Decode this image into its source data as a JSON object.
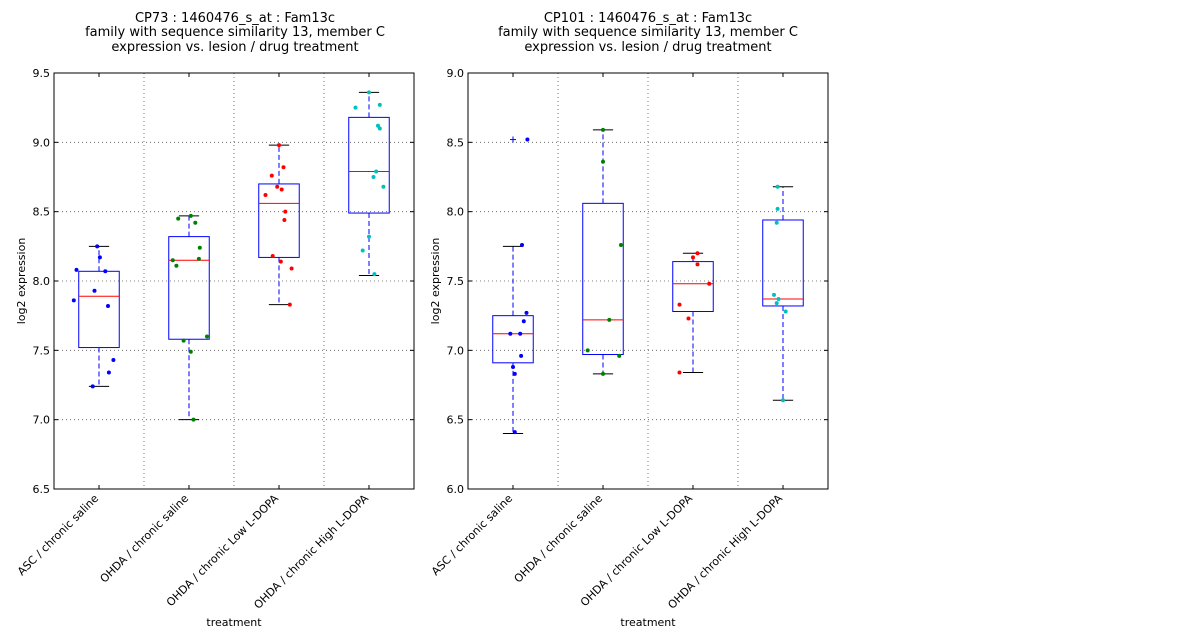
{
  "chart_data": [
    {
      "type": "boxplot",
      "title": [
        "CP73 : 1460476_s_at : Fam13c",
        "family with sequence similarity 13, member C",
        "expression vs. lesion / drug treatment"
      ],
      "xlabel": "treatment",
      "ylabel": "log2 expression",
      "ylim": [
        6.5,
        9.5
      ],
      "yticks": [
        "6.5",
        "7.0",
        "7.5",
        "8.0",
        "8.5",
        "9.0",
        "9.5"
      ],
      "grid": true,
      "categories": [
        "ASC / chronic saline",
        "OHDA / chronic saline",
        "OHDA / chronic Low L-DOPA",
        "OHDA / chronic High L-DOPA"
      ],
      "colors": [
        "#0000ff",
        "#008000",
        "#ff0000",
        "#00bfbf"
      ],
      "boxes": [
        {
          "whislo": 7.24,
          "q1": 7.52,
          "med": 7.89,
          "q3": 8.07,
          "whishi": 8.25,
          "fliers": []
        },
        {
          "whislo": 7.0,
          "q1": 7.58,
          "med": 8.15,
          "q3": 8.32,
          "whishi": 8.47,
          "fliers": []
        },
        {
          "whislo": 7.83,
          "q1": 8.17,
          "med": 8.56,
          "q3": 8.7,
          "whishi": 8.98,
          "fliers": []
        },
        {
          "whislo": 8.04,
          "q1": 8.49,
          "med": 8.79,
          "q3": 9.18,
          "whishi": 9.36,
          "fliers": []
        }
      ],
      "points": [
        [
          {
            "dx": -0.02,
            "y": 8.25
          },
          {
            "dx": 0.01,
            "y": 8.17
          },
          {
            "dx": -0.25,
            "y": 8.08
          },
          {
            "dx": 0.07,
            "y": 8.07
          },
          {
            "dx": -0.05,
            "y": 7.93
          },
          {
            "dx": -0.28,
            "y": 7.86
          },
          {
            "dx": 0.1,
            "y": 7.82
          },
          {
            "dx": 0.16,
            "y": 7.43
          },
          {
            "dx": 0.11,
            "y": 7.34
          },
          {
            "dx": -0.07,
            "y": 7.24
          }
        ],
        [
          {
            "dx": 0.02,
            "y": 8.47
          },
          {
            "dx": -0.12,
            "y": 8.45
          },
          {
            "dx": 0.07,
            "y": 8.42
          },
          {
            "dx": 0.12,
            "y": 8.24
          },
          {
            "dx": -0.18,
            "y": 8.15
          },
          {
            "dx": 0.11,
            "y": 8.16
          },
          {
            "dx": -0.14,
            "y": 8.11
          },
          {
            "dx": 0.2,
            "y": 7.6
          },
          {
            "dx": -0.06,
            "y": 7.57
          },
          {
            "dx": 0.02,
            "y": 7.49
          },
          {
            "dx": 0.05,
            "y": 7.0
          }
        ],
        [
          {
            "dx": 0.0,
            "y": 8.98
          },
          {
            "dx": 0.05,
            "y": 8.82
          },
          {
            "dx": -0.08,
            "y": 8.76
          },
          {
            "dx": -0.02,
            "y": 8.68
          },
          {
            "dx": 0.03,
            "y": 8.66
          },
          {
            "dx": -0.15,
            "y": 8.62
          },
          {
            "dx": 0.07,
            "y": 8.5
          },
          {
            "dx": 0.06,
            "y": 8.44
          },
          {
            "dx": -0.07,
            "y": 8.18
          },
          {
            "dx": 0.02,
            "y": 8.14
          },
          {
            "dx": 0.14,
            "y": 8.09
          },
          {
            "dx": 0.12,
            "y": 7.83
          }
        ],
        [
          {
            "dx": 0.0,
            "y": 9.36
          },
          {
            "dx": 0.12,
            "y": 9.27
          },
          {
            "dx": -0.15,
            "y": 9.25
          },
          {
            "dx": 0.1,
            "y": 9.12
          },
          {
            "dx": 0.12,
            "y": 9.1
          },
          {
            "dx": 0.08,
            "y": 8.79
          },
          {
            "dx": 0.05,
            "y": 8.75
          },
          {
            "dx": 0.16,
            "y": 8.68
          },
          {
            "dx": 0.0,
            "y": 8.32
          },
          {
            "dx": -0.07,
            "y": 8.22
          },
          {
            "dx": 0.06,
            "y": 8.05
          }
        ]
      ]
    },
    {
      "type": "boxplot",
      "title": [
        "CP101 : 1460476_s_at : Fam13c",
        "family with sequence similarity 13, member C",
        "expression vs. lesion / drug treatment"
      ],
      "xlabel": "treatment",
      "ylabel": "log2 expression",
      "ylim": [
        6.0,
        9.0
      ],
      "yticks": [
        "6.0",
        "6.5",
        "7.0",
        "7.5",
        "8.0",
        "8.5",
        "9.0"
      ],
      "grid": true,
      "categories": [
        "ASC / chronic saline",
        "OHDA / chronic saline",
        "OHDA / chronic Low L-DOPA",
        "OHDA / chronic High L-DOPA"
      ],
      "colors": [
        "#0000ff",
        "#008000",
        "#ff0000",
        "#00bfbf"
      ],
      "boxes": [
        {
          "whislo": 6.4,
          "q1": 6.91,
          "med": 7.12,
          "q3": 7.25,
          "whishi": 7.75,
          "fliers": [
            8.52
          ]
        },
        {
          "whislo": 6.83,
          "q1": 6.97,
          "med": 7.22,
          "q3": 8.06,
          "whishi": 8.59,
          "fliers": []
        },
        {
          "whislo": 6.84,
          "q1": 7.28,
          "med": 7.48,
          "q3": 7.64,
          "whishi": 7.7,
          "fliers": []
        },
        {
          "whislo": 6.64,
          "q1": 7.32,
          "med": 7.37,
          "q3": 7.94,
          "whishi": 8.18,
          "fliers": []
        }
      ],
      "points": [
        [
          {
            "dx": 0.16,
            "y": 8.52
          },
          {
            "dx": 0.1,
            "y": 7.76
          },
          {
            "dx": 0.15,
            "y": 7.27
          },
          {
            "dx": 0.12,
            "y": 7.21
          },
          {
            "dx": -0.03,
            "y": 7.12
          },
          {
            "dx": 0.08,
            "y": 7.12
          },
          {
            "dx": 0.09,
            "y": 6.96
          },
          {
            "dx": 0.0,
            "y": 6.88
          },
          {
            "dx": 0.02,
            "y": 6.83
          },
          {
            "dx": 0.02,
            "y": 6.41
          }
        ],
        [
          {
            "dx": 0.0,
            "y": 8.59
          },
          {
            "dx": 0.0,
            "y": 8.36
          },
          {
            "dx": 0.2,
            "y": 7.76
          },
          {
            "dx": 0.07,
            "y": 7.22
          },
          {
            "dx": -0.17,
            "y": 7.0
          },
          {
            "dx": 0.18,
            "y": 6.96
          },
          {
            "dx": 0.0,
            "y": 6.83
          }
        ],
        [
          {
            "dx": 0.05,
            "y": 7.7
          },
          {
            "dx": 0.0,
            "y": 7.67
          },
          {
            "dx": 0.05,
            "y": 7.62
          },
          {
            "dx": 0.18,
            "y": 7.48
          },
          {
            "dx": -0.15,
            "y": 7.33
          },
          {
            "dx": -0.05,
            "y": 7.23
          },
          {
            "dx": -0.15,
            "y": 6.84
          }
        ],
        [
          {
            "dx": -0.06,
            "y": 8.18
          },
          {
            "dx": -0.06,
            "y": 8.02
          },
          {
            "dx": -0.07,
            "y": 7.92
          },
          {
            "dx": -0.1,
            "y": 7.4
          },
          {
            "dx": -0.05,
            "y": 7.37
          },
          {
            "dx": -0.07,
            "y": 7.34
          },
          {
            "dx": 0.03,
            "y": 7.28
          },
          {
            "dx": 0.0,
            "y": 6.64
          }
        ]
      ]
    }
  ]
}
